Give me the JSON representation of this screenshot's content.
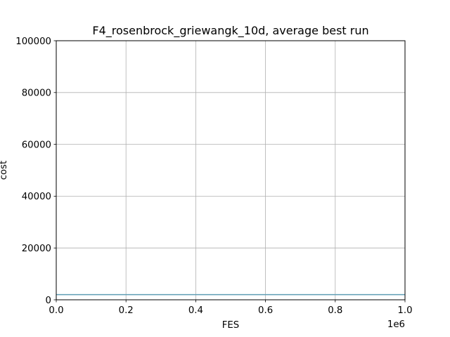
{
  "chart_data": {
    "type": "line",
    "title": "F4_rosenbrock_griewangk_10d, average best run",
    "xlabel": "FES",
    "ylabel": "cost",
    "x_offset_label": "1e6",
    "xlim": [
      0,
      1.0
    ],
    "ylim": [
      0,
      100000
    ],
    "x_ticks": [
      0.0,
      0.2,
      0.4,
      0.6,
      0.8,
      1.0
    ],
    "x_tick_labels": [
      "0.0",
      "0.2",
      "0.4",
      "0.6",
      "0.8",
      "1.0"
    ],
    "y_ticks": [
      0,
      20000,
      40000,
      60000,
      80000,
      100000
    ],
    "y_tick_labels": [
      "0",
      "20000",
      "40000",
      "60000",
      "80000",
      "100000"
    ],
    "grid": true,
    "series": [
      {
        "color": "#5f9eb5",
        "x": [
          0.0,
          1.0
        ],
        "y": [
          2000,
          2000
        ]
      }
    ]
  }
}
